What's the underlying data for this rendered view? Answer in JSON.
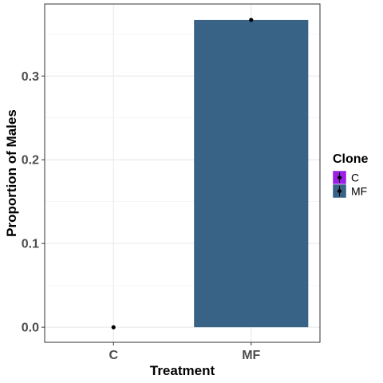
{
  "chart_data": {
    "type": "bar",
    "xlabel": "Treatment",
    "ylabel": "Proportion of Males",
    "categories": [
      "C",
      "MF"
    ],
    "values": [
      0.0,
      0.367
    ],
    "bar_fill": [
      "#9b1ee6",
      "#386387"
    ],
    "ylim": [
      -0.018,
      0.386
    ],
    "yticks": [
      0.0,
      0.1,
      0.2,
      0.3
    ],
    "ytick_labels": [
      "0.0",
      "0.1",
      "0.2",
      "0.3"
    ],
    "grid": true,
    "legend": {
      "title": "Clone",
      "position": "right",
      "entries": [
        {
          "label": "C",
          "color": "#9b1ee6"
        },
        {
          "label": "MF",
          "color": "#386387"
        }
      ]
    },
    "point_color": "#000000"
  }
}
